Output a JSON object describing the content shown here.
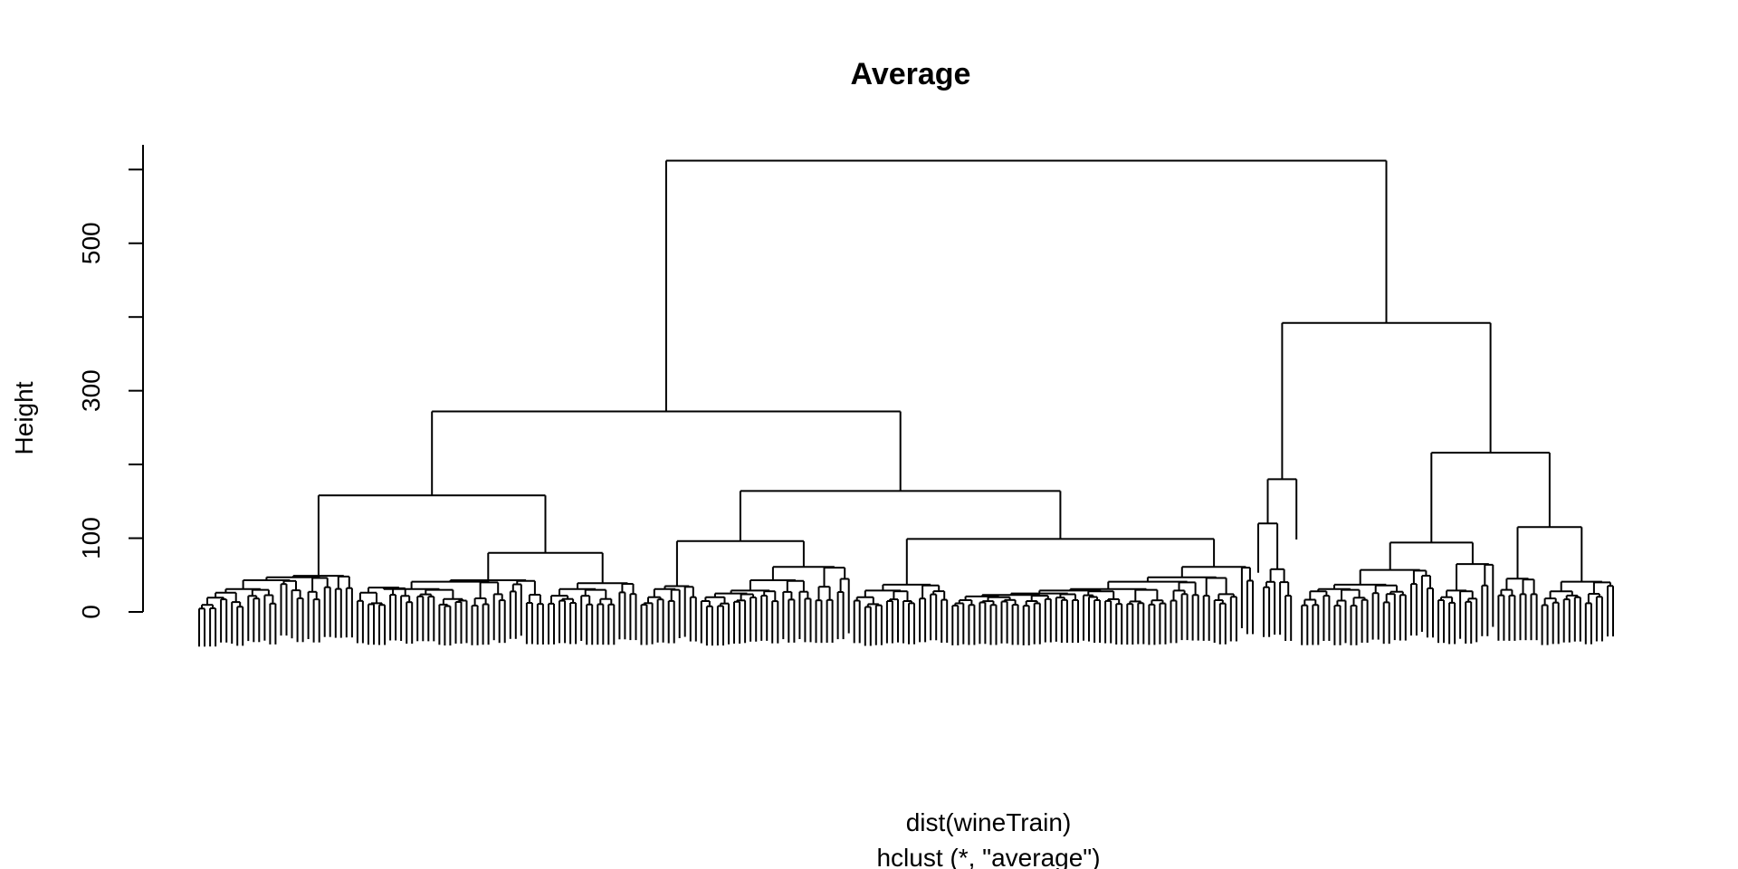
{
  "chart_data": {
    "type": "dendrogram",
    "title": "Average",
    "xlabel": "dist(wineTrain)",
    "sublabel": "hclust (*, \"average\")",
    "ylabel": "Height",
    "y_ticks": [
      0,
      100,
      200,
      300,
      400,
      500,
      600
    ],
    "y_tick_labels": [
      "0",
      "100",
      "",
      "300",
      "",
      "500",
      ""
    ],
    "ylim": [
      0,
      615
    ],
    "grid": false,
    "n_leaves": 236,
    "merges": [
      {
        "id": "root",
        "height": 612
      },
      {
        "id": "left",
        "height": 272
      },
      {
        "id": "right",
        "height": 392
      },
      {
        "id": "L1",
        "height": 158
      },
      {
        "id": "L2",
        "height": 164
      },
      {
        "id": "L1a",
        "height": 53
      },
      {
        "id": "L1b",
        "height": 80
      },
      {
        "id": "L2a",
        "height": 96
      },
      {
        "id": "L2b",
        "height": 99
      },
      {
        "id": "R1",
        "height": 180
      },
      {
        "id": "R2",
        "height": 216
      },
      {
        "id": "R2a",
        "height": 94
      },
      {
        "id": "R2b",
        "height": 115
      }
    ]
  }
}
